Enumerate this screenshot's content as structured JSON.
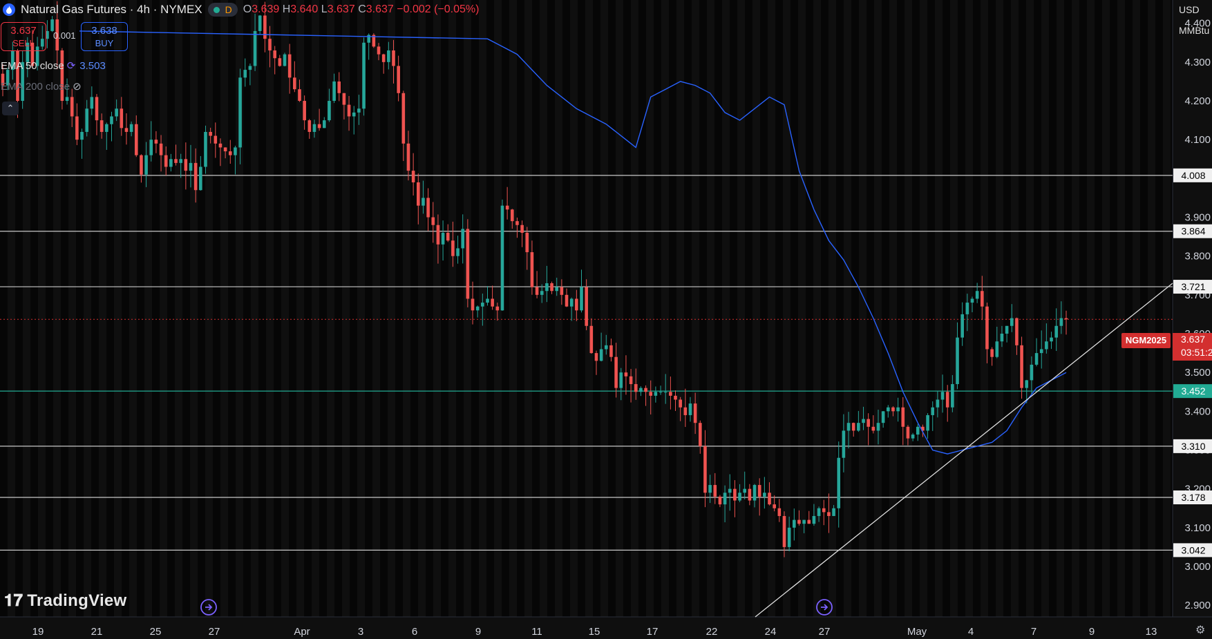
{
  "header": {
    "title": "Natural Gas Futures · 4h · NYMEX",
    "badge": "D",
    "ohlc": {
      "o_label": "O",
      "o": "3.639",
      "h_label": "H",
      "h": "3.640",
      "l_label": "L",
      "l": "3.637",
      "c_label": "C",
      "c": "3.637",
      "change": "−0.002 (−0.05%)"
    }
  },
  "trade": {
    "sell_price": "3.637",
    "sell_label": "SELL",
    "buy_price": "3.638",
    "buy_label": "BUY",
    "spread": "0.001"
  },
  "indicators": [
    {
      "label": "EMA 50 close",
      "value": "3.503"
    },
    {
      "label": "EMA 200 close"
    }
  ],
  "brand": "TradingView",
  "axis_unit": {
    "currency": "USD",
    "unit": "MMBtu"
  },
  "symbol_tag": "NGM2025",
  "last_price": "3.637",
  "countdown": "03:51:2",
  "colors": {
    "up": "#26a69a",
    "down": "#ef5350",
    "ema": "#2962ff",
    "last": "#d32f2f",
    "green_level": "#22ab94"
  },
  "chart_data": {
    "type": "candlestick",
    "y_ticks": [
      "2.900",
      "3.000",
      "3.100",
      "3.200",
      "3.300",
      "3.400",
      "3.500",
      "3.600",
      "3.700",
      "3.800",
      "3.900",
      "4.000",
      "4.100",
      "4.200",
      "4.300",
      "4.400"
    ],
    "ylim": [
      2.87,
      4.46
    ],
    "x_labels": [
      "19",
      "21",
      "25",
      "27",
      "Apr",
      "3",
      "6",
      "9",
      "11",
      "15",
      "17",
      "22",
      "24",
      "27",
      "May",
      "4",
      "7",
      "9",
      "13"
    ],
    "levels": [
      {
        "value": 4.008,
        "label": "4.008",
        "color": "#c8c8c8"
      },
      {
        "value": 3.864,
        "label": "3.864",
        "color": "#c8c8c8"
      },
      {
        "value": 3.721,
        "label": "3.721",
        "color": "#c8c8c8"
      },
      {
        "value": 3.452,
        "label": "3.452",
        "color": "#22ab94"
      },
      {
        "value": 3.31,
        "label": "3.310",
        "color": "#c8c8c8"
      },
      {
        "value": 3.178,
        "label": "3.178",
        "color": "#c8c8c8"
      },
      {
        "value": 3.042,
        "label": "3.042",
        "color": "#c8c8c8"
      }
    ],
    "current_price": 3.637,
    "trendline": [
      {
        "date": "Apr 23",
        "price": 2.87
      },
      {
        "date": "May 7",
        "price": 3.73
      }
    ],
    "closes": [
      4.24,
      4.28,
      4.33,
      4.2,
      4.3,
      4.35,
      4.29,
      4.34,
      4.36,
      4.38,
      4.41,
      4.33,
      4.2,
      4.21,
      4.16,
      4.1,
      4.12,
      4.18,
      4.21,
      4.15,
      4.12,
      4.14,
      4.16,
      4.18,
      4.13,
      4.12,
      4.14,
      4.06,
      4.01,
      4.06,
      4.1,
      4.09,
      4.06,
      4.03,
      4.05,
      4.04,
      4.05,
      4.02,
      4.04,
      3.97,
      4.03,
      4.12,
      4.11,
      4.09,
      4.08,
      4.07,
      4.06,
      4.08,
      4.26,
      4.28,
      4.29,
      4.38,
      4.42,
      4.36,
      4.33,
      4.31,
      4.29,
      4.32,
      4.26,
      4.23,
      4.2,
      4.15,
      4.12,
      4.14,
      4.13,
      4.15,
      4.2,
      4.25,
      4.22,
      4.19,
      4.16,
      4.17,
      4.18,
      4.35,
      4.37,
      4.34,
      4.32,
      4.3,
      4.33,
      4.29,
      4.22,
      4.09,
      4.02,
      3.99,
      3.93,
      3.95,
      3.9,
      3.88,
      3.83,
      3.86,
      3.84,
      3.8,
      3.82,
      3.87,
      3.69,
      3.66,
      3.67,
      3.68,
      3.69,
      3.67,
      3.66,
      3.93,
      3.92,
      3.89,
      3.88,
      3.86,
      3.81,
      3.72,
      3.7,
      3.71,
      3.73,
      3.71,
      3.72,
      3.7,
      3.67,
      3.69,
      3.66,
      3.72,
      3.62,
      3.55,
      3.53,
      3.56,
      3.57,
      3.54,
      3.46,
      3.5,
      3.49,
      3.47,
      3.45,
      3.46,
      3.45,
      3.44,
      3.45,
      3.45,
      3.45,
      3.44,
      3.43,
      3.41,
      3.39,
      3.42,
      3.37,
      3.31,
      3.19,
      3.21,
      3.18,
      3.16,
      3.19,
      3.2,
      3.17,
      3.19,
      3.2,
      3.17,
      3.21,
      3.18,
      3.19,
      3.16,
      3.15,
      3.13,
      3.05,
      3.1,
      3.12,
      3.11,
      3.12,
      3.11,
      3.13,
      3.15,
      3.14,
      3.13,
      3.15,
      3.28,
      3.35,
      3.37,
      3.35,
      3.37,
      3.38,
      3.36,
      3.35,
      3.37,
      3.4,
      3.41,
      3.4,
      3.41,
      3.36,
      3.33,
      3.34,
      3.36,
      3.35,
      3.39,
      3.41,
      3.43,
      3.45,
      3.41,
      3.47,
      3.59,
      3.65,
      3.68,
      3.69,
      3.71,
      3.67,
      3.56,
      3.54,
      3.58,
      3.6,
      3.62,
      3.64,
      3.57,
      3.46,
      3.48,
      3.52,
      3.55,
      3.56,
      3.58,
      3.59,
      3.62,
      3.64,
      3.637
    ],
    "ema50": [
      4.38,
      4.36,
      4.34,
      4.32,
      4.28,
      4.24,
      4.21,
      4.18,
      4.16,
      4.14,
      4.11,
      4.08,
      4.21,
      4.23,
      4.25,
      4.24,
      4.22,
      4.17,
      4.15,
      4.18,
      4.21,
      4.19,
      4.02,
      3.92,
      3.84,
      3.79,
      3.72,
      3.64,
      3.55,
      3.45,
      3.37,
      3.3,
      3.29,
      3.3,
      3.31,
      3.32,
      3.35,
      3.41,
      3.46,
      3.48,
      3.5
    ],
    "ema50_offset": 95
  }
}
